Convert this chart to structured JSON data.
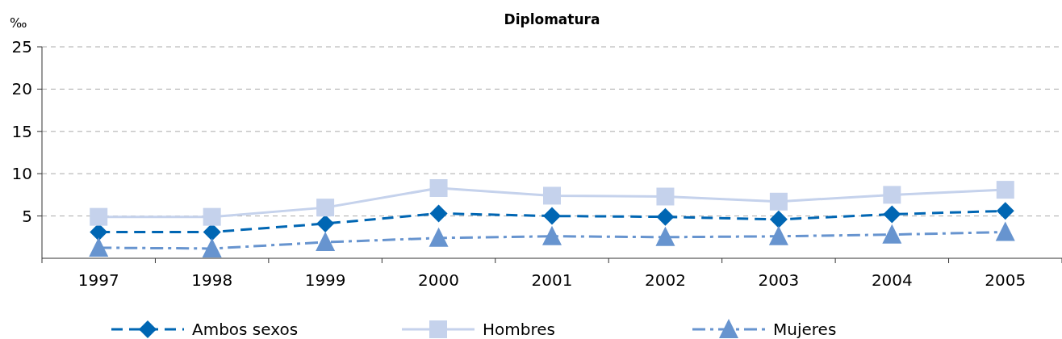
{
  "chart_data": {
    "type": "line",
    "title": "Diplomatura",
    "ylabel": "‰",
    "categories": [
      "1997",
      "1998",
      "1999",
      "2000",
      "2001",
      "2002",
      "2003",
      "2004",
      "2005"
    ],
    "ylim": [
      0,
      25
    ],
    "yticks": [
      5,
      10,
      15,
      20,
      25
    ],
    "grid": "y",
    "legend": "bottom",
    "series": [
      {
        "name": "Ambos sexos",
        "color": "#0066b3",
        "marker": "diamond",
        "line_style": "dashed",
        "values": [
          3.1,
          3.1,
          4.1,
          5.3,
          5.0,
          4.9,
          4.6,
          5.2,
          5.6
        ]
      },
      {
        "name": "Hombres",
        "color": "#c5d2ec",
        "marker": "square",
        "line_style": "solid",
        "values": [
          4.9,
          4.9,
          6.0,
          8.3,
          7.4,
          7.3,
          6.7,
          7.5,
          8.1
        ]
      },
      {
        "name": "Mujeres",
        "color": "#6794cf",
        "marker": "triangle",
        "line_style": "dashdot",
        "values": [
          1.25,
          1.15,
          1.9,
          2.4,
          2.6,
          2.5,
          2.6,
          2.8,
          3.1
        ]
      }
    ]
  }
}
